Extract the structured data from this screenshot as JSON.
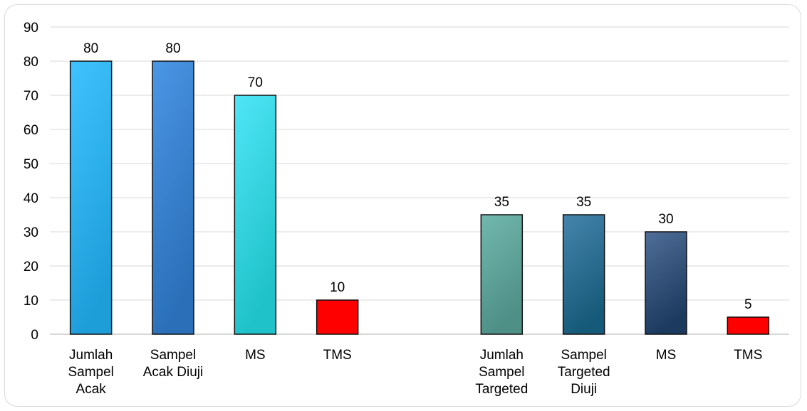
{
  "chart_data": {
    "type": "bar",
    "title": "",
    "xlabel": "",
    "ylabel": "",
    "ylim": [
      0,
      90
    ],
    "yticks": [
      0,
      10,
      20,
      30,
      40,
      50,
      60,
      70,
      80,
      90
    ],
    "grid": true,
    "legend": "none",
    "categories": [
      "Jumlah Sampel Acak",
      "Sampel Acak Diuji",
      "MS",
      "TMS",
      "",
      "Jumlah Sampel Targeted",
      "Sampel Targeted Diuji",
      "MS",
      "TMS"
    ],
    "category_lines": [
      [
        "Jumlah",
        "Sampel",
        "Acak"
      ],
      [
        "Sampel",
        "Acak Diuji"
      ],
      [
        "MS"
      ],
      [
        "TMS"
      ],
      [],
      [
        "Jumlah",
        "Sampel",
        "Targeted"
      ],
      [
        "Sampel",
        "Targeted",
        "Diuji"
      ],
      [
        "MS"
      ],
      [
        "TMS"
      ]
    ],
    "values": [
      80,
      80,
      70,
      10,
      null,
      35,
      35,
      30,
      5
    ],
    "data_labels": [
      "80",
      "80",
      "70",
      "10",
      "",
      "35",
      "35",
      "30",
      "5"
    ],
    "bar_colors": [
      [
        "#3fc3ff",
        "#1e9ed9"
      ],
      [
        "#4b96e6",
        "#2a6fb8"
      ],
      [
        "#4fe6f8",
        "#1fc2c8"
      ],
      [
        "#ff0000",
        "#ff0000"
      ],
      [
        "#ffffff",
        "#ffffff"
      ],
      [
        "#72b8ae",
        "#4e8f86"
      ],
      [
        "#4585ac",
        "#165a79"
      ],
      [
        "#4f6e98",
        "#1c3a5e"
      ],
      [
        "#ff0000",
        "#ff0000"
      ]
    ]
  }
}
